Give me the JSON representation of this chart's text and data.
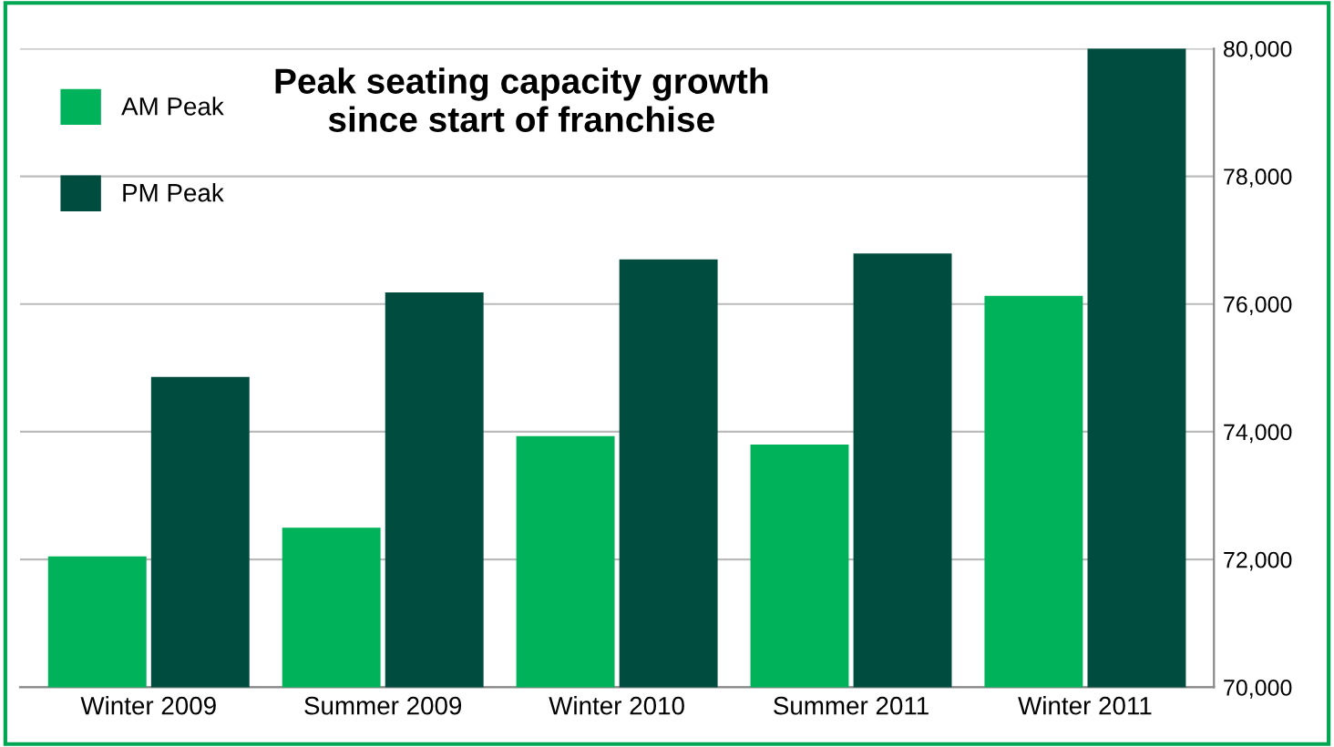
{
  "chart_data": {
    "type": "bar",
    "title": "Peak seating capacity growth\nsince start of franchise",
    "categories": [
      "Winter 2009",
      "Summer 2009",
      "Winter 2010",
      "Summer 2011",
      "Winter 2011"
    ],
    "series": [
      {
        "name": "AM Peak",
        "color": "#00b259",
        "values": [
          72050,
          72500,
          73930,
          73800,
          76130
        ]
      },
      {
        "name": "PM Peak",
        "color": "#004d40",
        "values": [
          74860,
          76180,
          76700,
          76790,
          80000
        ]
      }
    ],
    "ylim": [
      70000,
      80000
    ],
    "yticks": [
      {
        "value": 70000,
        "label": "70,000"
      },
      {
        "value": 72000,
        "label": "72,000"
      },
      {
        "value": 74000,
        "label": "74,000"
      },
      {
        "value": 76000,
        "label": "76,000"
      },
      {
        "value": 78000,
        "label": "78,000"
      },
      {
        "value": 80000,
        "label": "80,000"
      }
    ],
    "grid": "y",
    "legend": "top left"
  }
}
